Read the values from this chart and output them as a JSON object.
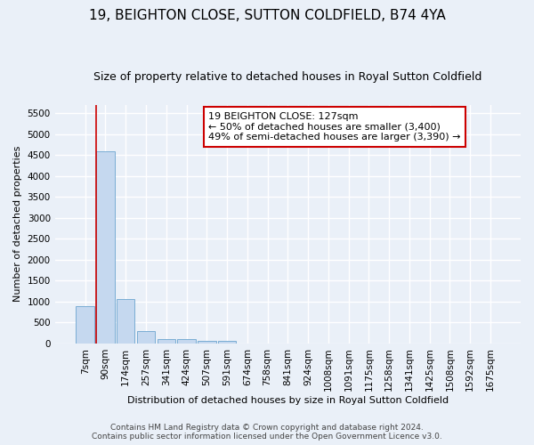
{
  "title": "19, BEIGHTON CLOSE, SUTTON COLDFIELD, B74 4YA",
  "subtitle": "Size of property relative to detached houses in Royal Sutton Coldfield",
  "xlabel": "Distribution of detached houses by size in Royal Sutton Coldfield",
  "ylabel": "Number of detached properties",
  "footer_line1": "Contains HM Land Registry data © Crown copyright and database right 2024.",
  "footer_line2": "Contains public sector information licensed under the Open Government Licence v3.0.",
  "bar_labels": [
    "7sqm",
    "90sqm",
    "174sqm",
    "257sqm",
    "341sqm",
    "424sqm",
    "507sqm",
    "591sqm",
    "674sqm",
    "758sqm",
    "841sqm",
    "924sqm",
    "1008sqm",
    "1091sqm",
    "1175sqm",
    "1258sqm",
    "1341sqm",
    "1425sqm",
    "1508sqm",
    "1592sqm",
    "1675sqm"
  ],
  "bar_values": [
    880,
    4580,
    1060,
    295,
    100,
    100,
    55,
    55,
    0,
    0,
    0,
    0,
    0,
    0,
    0,
    0,
    0,
    0,
    0,
    0,
    0
  ],
  "bar_color": "#c5d8ef",
  "bar_edge_color": "#7aadd4",
  "highlight_bar_index": 1,
  "highlight_line_color": "#cc0000",
  "annotation_box_text": "19 BEIGHTON CLOSE: 127sqm\n← 50% of detached houses are smaller (3,400)\n49% of semi-detached houses are larger (3,390) →",
  "annotation_box_color": "#cc0000",
  "ylim": [
    0,
    5700
  ],
  "yticks": [
    0,
    500,
    1000,
    1500,
    2000,
    2500,
    3000,
    3500,
    4000,
    4500,
    5000,
    5500
  ],
  "bg_color": "#eaf0f8",
  "plot_bg_color": "#eaf0f8",
  "grid_color": "#ffffff",
  "title_fontsize": 11,
  "subtitle_fontsize": 9,
  "axis_label_fontsize": 8,
  "tick_fontsize": 7.5,
  "footer_fontsize": 6.5
}
